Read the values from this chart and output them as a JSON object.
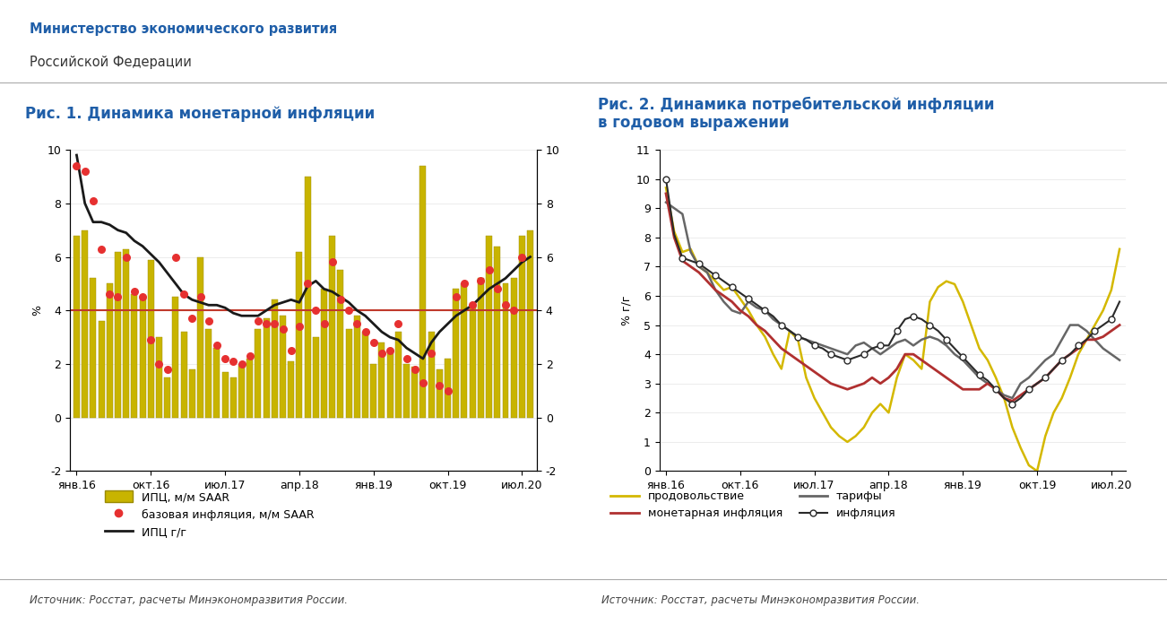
{
  "title_left": "Рис. 1. Динамика монетарной инфляции",
  "title_right": "Рис. 2. Динамика потребительской инфляции\nв годовом выражении",
  "header_line1": "Министерство экономического развития",
  "header_line2": "Российской Федерации",
  "source_text": "Источник: Росстат, расчеты Минэкономразвития России.",
  "bg_color": "#ffffff",
  "title_bg_color": "#d9e2f0",
  "chart1_ylabel_left": "%",
  "chart1_ylim": [
    -2,
    10
  ],
  "chart1_yticks": [
    -2,
    0,
    2,
    4,
    6,
    8,
    10
  ],
  "chart1_xtick_labels": [
    "янв.16",
    "окт.16",
    "июл.17",
    "апр.18",
    "янв.19",
    "окт.19",
    "июл.20"
  ],
  "chart1_hline_y": 4.0,
  "chart1_hline_color": "#c0392b",
  "chart2_ylabel": "% г/г",
  "chart2_ylim": [
    0,
    11
  ],
  "chart2_yticks": [
    0,
    1,
    2,
    3,
    4,
    5,
    6,
    7,
    8,
    9,
    10,
    11
  ],
  "chart2_xtick_labels": [
    "янв.16",
    "окт.16",
    "июл.17",
    "апр.18",
    "янв.19",
    "окт.19",
    "июл.20"
  ],
  "bar_color": "#c8b400",
  "bar_edge_color": "#9a8a00",
  "dot_color": "#e63030",
  "line1_color": "#1a1a1a",
  "food_color": "#d4b800",
  "tariff_color": "#666666",
  "monetary_color": "#b03030",
  "inflation_color": "#2a2a2a",
  "legend1": [
    "ИПЦ, м/м SAAR",
    "базовая инфляция, м/м SAAR",
    "ИПЦ г/г"
  ],
  "legend2_col1": [
    "продовольствие",
    "тарифы"
  ],
  "legend2_col2": [
    "монетарная инфляция",
    "инфляция"
  ],
  "n_months": 56,
  "xtick_pos": [
    0,
    9,
    18,
    27,
    36,
    45,
    54
  ],
  "bars": [
    6.8,
    7.0,
    5.2,
    3.6,
    5.0,
    6.2,
    6.3,
    4.6,
    4.5,
    5.9,
    3.0,
    1.5,
    4.5,
    3.2,
    1.8,
    6.0,
    3.3,
    2.6,
    1.7,
    1.5,
    2.0,
    2.2,
    3.3,
    3.7,
    4.4,
    3.8,
    2.1,
    6.2,
    9.0,
    3.0,
    4.8,
    6.8,
    5.5,
    3.3,
    3.8,
    3.2,
    2.0,
    2.8,
    2.5,
    3.2,
    2.0,
    1.9,
    9.4,
    3.2,
    1.8,
    2.2,
    4.8,
    5.0,
    4.2,
    5.2,
    6.8,
    6.4,
    5.0,
    5.2,
    6.8,
    7.0
  ],
  "dots": [
    9.4,
    9.2,
    8.1,
    6.3,
    4.6,
    4.5,
    6.0,
    4.7,
    4.5,
    2.9,
    2.0,
    1.8,
    6.0,
    4.6,
    3.7,
    4.5,
    3.6,
    2.7,
    2.2,
    2.1,
    2.0,
    2.3,
    3.6,
    3.5,
    3.5,
    3.3,
    2.5,
    3.4,
    5.0,
    4.0,
    3.5,
    5.8,
    4.4,
    4.0,
    3.5,
    3.2,
    2.8,
    2.4,
    2.5,
    3.5,
    2.2,
    1.8,
    1.3,
    2.4,
    1.2,
    1.0,
    4.5,
    5.0,
    4.2,
    5.1,
    5.5,
    4.8,
    4.2,
    4.0,
    6.0,
    null
  ],
  "ipc_yoy": [
    9.8,
    8.0,
    7.3,
    7.3,
    7.2,
    7.0,
    6.9,
    6.6,
    6.4,
    6.1,
    5.8,
    5.4,
    5.0,
    4.6,
    4.4,
    4.3,
    4.2,
    4.2,
    4.1,
    3.9,
    3.8,
    3.8,
    3.8,
    4.0,
    4.2,
    4.3,
    4.4,
    4.3,
    4.9,
    5.1,
    4.8,
    4.7,
    4.5,
    4.3,
    4.0,
    3.8,
    3.5,
    3.2,
    3.0,
    2.9,
    2.6,
    2.4,
    2.2,
    2.8,
    3.2,
    3.5,
    3.8,
    4.0,
    4.2,
    4.5,
    4.8,
    5.0,
    5.2,
    5.5,
    5.8,
    6.0
  ],
  "food": [
    9.7,
    8.2,
    7.5,
    7.6,
    7.0,
    6.8,
    6.5,
    6.2,
    6.3,
    5.9,
    5.5,
    5.0,
    4.6,
    4.0,
    3.5,
    4.8,
    4.5,
    3.2,
    2.5,
    2.0,
    1.5,
    1.2,
    1.0,
    1.2,
    1.5,
    2.0,
    2.3,
    2.0,
    3.2,
    4.0,
    3.8,
    3.5,
    5.8,
    6.3,
    6.5,
    6.4,
    5.8,
    5.0,
    4.2,
    3.8,
    3.2,
    2.5,
    1.5,
    0.8,
    0.2,
    0.0,
    1.2,
    2.0,
    2.5,
    3.2,
    4.0,
    4.5,
    5.0,
    5.5,
    6.2,
    7.6
  ],
  "tariffs": [
    9.2,
    9.0,
    8.8,
    7.5,
    7.0,
    6.8,
    6.2,
    5.8,
    5.5,
    5.4,
    5.8,
    5.6,
    5.5,
    5.2,
    5.0,
    4.8,
    4.6,
    4.5,
    4.4,
    4.3,
    4.2,
    4.1,
    4.0,
    4.3,
    4.4,
    4.2,
    4.0,
    4.2,
    4.4,
    4.5,
    4.3,
    4.5,
    4.6,
    4.5,
    4.3,
    4.0,
    3.8,
    3.5,
    3.2,
    3.0,
    2.8,
    2.6,
    2.5,
    3.0,
    3.2,
    3.5,
    3.8,
    4.0,
    4.5,
    5.0,
    5.0,
    4.8,
    4.5,
    4.2,
    4.0,
    3.8
  ],
  "monetary2": [
    9.5,
    8.0,
    7.2,
    7.0,
    6.8,
    6.5,
    6.2,
    6.0,
    5.8,
    5.5,
    5.3,
    5.0,
    4.8,
    4.5,
    4.2,
    4.0,
    3.8,
    3.6,
    3.4,
    3.2,
    3.0,
    2.9,
    2.8,
    2.9,
    3.0,
    3.2,
    3.0,
    3.2,
    3.5,
    4.0,
    4.0,
    3.8,
    3.6,
    3.4,
    3.2,
    3.0,
    2.8,
    2.8,
    2.8,
    3.0,
    2.8,
    2.5,
    2.4,
    2.6,
    2.8,
    3.0,
    3.2,
    3.5,
    3.8,
    4.0,
    4.2,
    4.5,
    4.5,
    4.6,
    4.8,
    5.0
  ],
  "inflation2": [
    10.0,
    8.1,
    7.3,
    7.2,
    7.1,
    6.9,
    6.7,
    6.5,
    6.3,
    6.1,
    5.9,
    5.7,
    5.5,
    5.3,
    5.0,
    4.8,
    4.6,
    4.5,
    4.3,
    4.2,
    4.0,
    3.9,
    3.8,
    3.9,
    4.0,
    4.2,
    4.3,
    4.3,
    4.8,
    5.2,
    5.3,
    5.2,
    5.0,
    4.8,
    4.5,
    4.2,
    3.9,
    3.6,
    3.3,
    3.1,
    2.8,
    2.5,
    2.3,
    2.5,
    2.8,
    3.0,
    3.2,
    3.5,
    3.8,
    4.0,
    4.3,
    4.5,
    4.8,
    5.0,
    5.2,
    5.8
  ]
}
